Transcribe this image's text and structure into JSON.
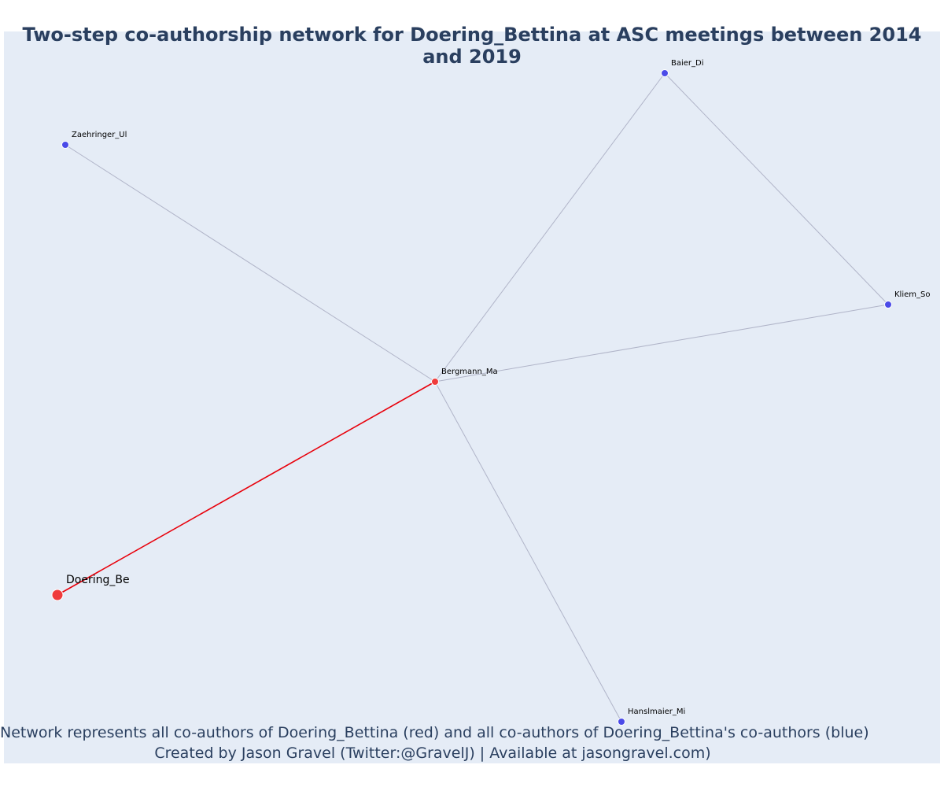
{
  "title": "Two-step co-authorship network for Doering_Bettina at ASC meetings between 2014 and 2019",
  "caption": {
    "line1": "Network represents all co-authors of Doering_Bettina (red) and all co-authors of Doering_Bettina's co-authors (blue)",
    "line2": "Created by Jason Gravel (Twitter:@GravelJ) | Available at jasongravel.com)"
  },
  "colors": {
    "background": "#e5ecf6",
    "focal_node": "#ef3b3b",
    "coauthor_node": "#4a4ae8",
    "focal_edge": "#e8000b",
    "other_edge": "#b0b4c8",
    "title_text": "#2a3f5f"
  },
  "network": {
    "nodes": [
      {
        "id": "Doering_Be",
        "label": "Doering_Be",
        "group": "focal"
      },
      {
        "id": "Bergmann_Ma",
        "label": "Bergmann_Ma",
        "group": "first-step"
      },
      {
        "id": "Baier_Di",
        "label": "Baier_Di",
        "group": "second-step"
      },
      {
        "id": "Zaehringer_Ul",
        "label": "Zaehringer_Ul",
        "group": "second-step"
      },
      {
        "id": "Kliem_So",
        "label": "Kliem_So",
        "group": "second-step"
      },
      {
        "id": "Hanslmaier_Mi",
        "label": "Hanslmaier_Mi",
        "group": "second-step"
      }
    ],
    "edges": [
      {
        "source": "Doering_Be",
        "target": "Bergmann_Ma",
        "type": "focal"
      },
      {
        "source": "Bergmann_Ma",
        "target": "Baier_Di",
        "type": "other"
      },
      {
        "source": "Bergmann_Ma",
        "target": "Zaehringer_Ul",
        "type": "other"
      },
      {
        "source": "Bergmann_Ma",
        "target": "Kliem_So",
        "type": "other"
      },
      {
        "source": "Bergmann_Ma",
        "target": "Hanslmaier_Mi",
        "type": "other"
      },
      {
        "source": "Baier_Di",
        "target": "Kliem_So",
        "type": "other"
      }
    ]
  }
}
